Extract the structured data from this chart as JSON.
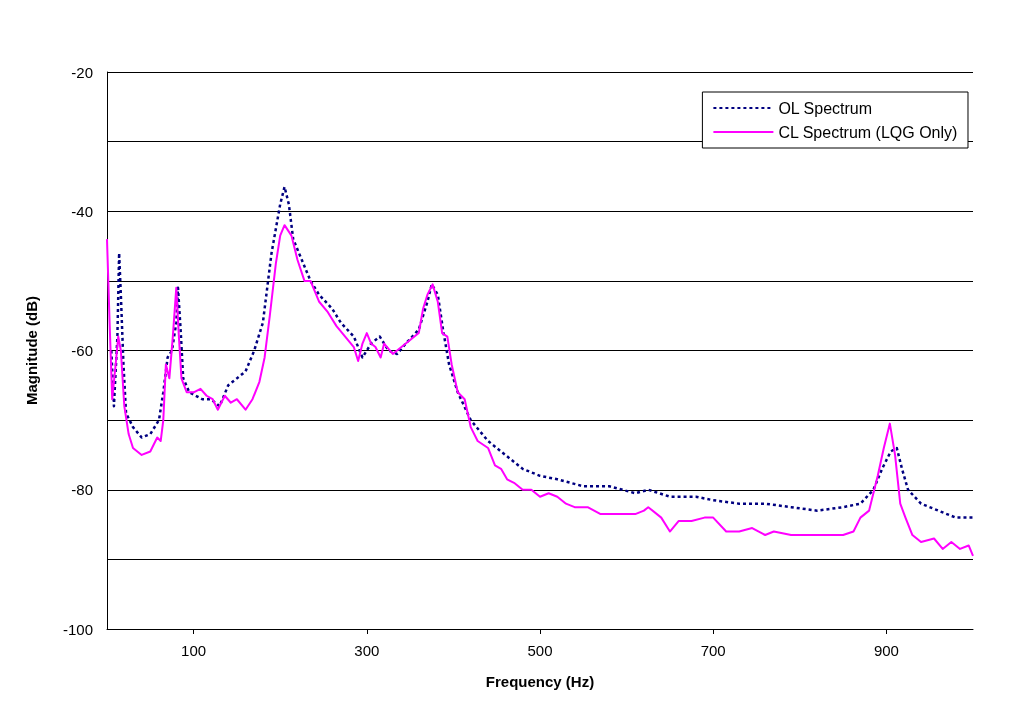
{
  "chart_data": {
    "type": "line",
    "xlabel": "Frequency (Hz)",
    "ylabel": "Magnitude (dB)",
    "xlim": [
      0,
      1000
    ],
    "xticks": [
      100,
      300,
      500,
      700,
      900
    ],
    "ylim": [
      -100,
      -20
    ],
    "yticks": [
      -100,
      {
        "value": -90,
        "label": null
      },
      -80,
      {
        "value": -70,
        "label": null
      },
      -60,
      {
        "value": -50,
        "label": null
      },
      -40,
      {
        "value": -30,
        "label": null
      },
      -20
    ],
    "grid": "y",
    "legend": "top right",
    "marker": "none",
    "series": [
      {
        "name": "OL Spectrum",
        "color": "#000080",
        "line_style": "dotted",
        "x": [
          5,
          8,
          12,
          14,
          16,
          19,
          22,
          30,
          40,
          50,
          60,
          65,
          70,
          75,
          80,
          82,
          85,
          88,
          95,
          110,
          120,
          130,
          140,
          150,
          160,
          170,
          180,
          190,
          200,
          205,
          210,
          215,
          225,
          235,
          245,
          260,
          270,
          285,
          295,
          305,
          315,
          325,
          335,
          345,
          360,
          370,
          375,
          382,
          388,
          395,
          405,
          420,
          440,
          460,
          480,
          500,
          520,
          550,
          580,
          610,
          625,
          650,
          680,
          700,
          730,
          760,
          790,
          820,
          850,
          870,
          885,
          895,
          905,
          912,
          918,
          925,
          940,
          960,
          980,
          1000
        ],
        "values": [
          -60,
          -68,
          -58,
          -46,
          -52,
          -62,
          -69,
          -71,
          -72.5,
          -72,
          -70,
          -66,
          -61,
          -60,
          -56,
          -51,
          -57,
          -64,
          -66,
          -67,
          -67,
          -68,
          -65,
          -64,
          -63,
          -60,
          -56,
          -46,
          -39,
          -36.5,
          -39,
          -44,
          -47,
          -50,
          -52,
          -54,
          -56,
          -58,
          -61,
          -59,
          -58,
          -60,
          -60.5,
          -59,
          -57,
          -53,
          -50.5,
          -52,
          -57,
          -62,
          -66,
          -70,
          -73,
          -75,
          -77,
          -78,
          -78.5,
          -79.5,
          -79.5,
          -80.5,
          -80,
          -81,
          -81,
          -81.5,
          -82,
          -82,
          -82.5,
          -83,
          -82.5,
          -82,
          -80,
          -77,
          -74.5,
          -74,
          -77,
          -80,
          -82,
          -83,
          -84,
          -84
        ]
      },
      {
        "name": "CL Spectrum (LQG Only)",
        "color": "#ff00ff",
        "line_style": "solid",
        "x": [
          0,
          3,
          6,
          10,
          13,
          16,
          20,
          25,
          30,
          40,
          50,
          58,
          62,
          65,
          68,
          72,
          76,
          80,
          83,
          86,
          92,
          100,
          108,
          115,
          122,
          128,
          136,
          143,
          150,
          160,
          168,
          176,
          182,
          188,
          195,
          200,
          205,
          213,
          220,
          228,
          235,
          245,
          255,
          265,
          275,
          285,
          290,
          295,
          300,
          305,
          310,
          316,
          320,
          330,
          340,
          350,
          360,
          365,
          370,
          376,
          382,
          387,
          393,
          398,
          405,
          413,
          420,
          428,
          440,
          448,
          455,
          462,
          470,
          480,
          490,
          500,
          510,
          520,
          530,
          540,
          555,
          570,
          590,
          610,
          620,
          625,
          640,
          650,
          660,
          675,
          690,
          700,
          715,
          730,
          745,
          760,
          770,
          790,
          810,
          830,
          850,
          862,
          870,
          880,
          890,
          897,
          904,
          910,
          916,
          922,
          930,
          940,
          955,
          965,
          975,
          985,
          995,
          1000
        ],
        "values": [
          -44,
          -56,
          -67,
          -62,
          -58,
          -60,
          -68,
          -72,
          -74,
          -75,
          -74.5,
          -72.5,
          -73,
          -70,
          -62,
          -64,
          -58,
          -51,
          -58,
          -64,
          -66,
          -66,
          -65.5,
          -66.5,
          -67,
          -68.5,
          -66.5,
          -67.5,
          -67,
          -68.5,
          -67,
          -64.5,
          -61,
          -55,
          -47.5,
          -43.5,
          -42,
          -43.5,
          -47,
          -50,
          -50,
          -53,
          -54.5,
          -56.5,
          -58,
          -59.5,
          -61.5,
          -59,
          -57.5,
          -59,
          -59.5,
          -61,
          -59,
          -60.5,
          -59.5,
          -58.5,
          -57.5,
          -54,
          -52,
          -50.5,
          -53,
          -57.5,
          -58,
          -62,
          -66,
          -67,
          -71,
          -73,
          -74,
          -76.5,
          -77,
          -78.5,
          -79,
          -80,
          -80,
          -81,
          -80.5,
          -81,
          -82,
          -82.5,
          -82.5,
          -83.5,
          -83.5,
          -83.5,
          -83,
          -82.5,
          -84,
          -86,
          -84.5,
          -84.5,
          -84,
          -84,
          -86,
          -86,
          -85.5,
          -86.5,
          -86,
          -86.5,
          -86.5,
          -86.5,
          -86.5,
          -86,
          -84,
          -83,
          -78,
          -74,
          -70.5,
          -75,
          -82,
          -84,
          -86.5,
          -87.5,
          -87,
          -88.5,
          -87.5,
          -88.5,
          -88,
          -89.5
        ]
      }
    ]
  }
}
